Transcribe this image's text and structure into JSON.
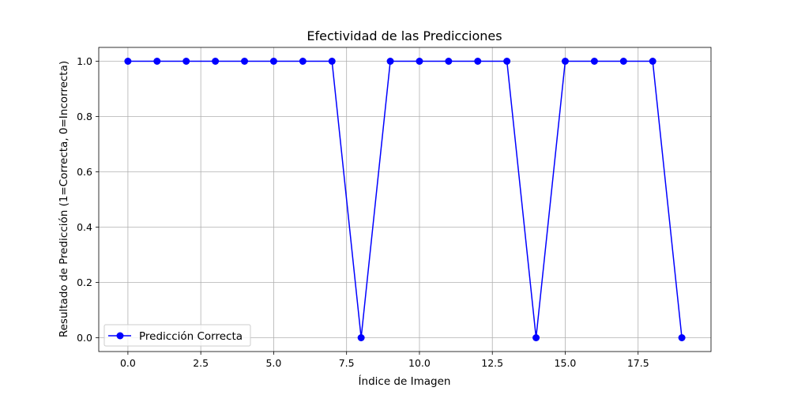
{
  "chart_data": {
    "type": "line",
    "title": "Efectividad de las Predicciones",
    "xlabel": "Índice de Imagen",
    "ylabel": "Resultado de Predicción (1=Correcta, 0=Incorrecta)",
    "xlim": [
      -1.0,
      20.0
    ],
    "ylim": [
      -0.05,
      1.05
    ],
    "x_ticks": [
      0.0,
      2.5,
      5.0,
      7.5,
      10.0,
      12.5,
      15.0,
      17.5
    ],
    "x_tick_labels": [
      "0.0",
      "2.5",
      "5.0",
      "7.5",
      "10.0",
      "12.5",
      "15.0",
      "17.5"
    ],
    "y_ticks": [
      0.0,
      0.2,
      0.4,
      0.6,
      0.8,
      1.0
    ],
    "y_tick_labels": [
      "0.0",
      "0.2",
      "0.4",
      "0.6",
      "0.8",
      "1.0"
    ],
    "grid": true,
    "legend_position": "lower-left",
    "series": [
      {
        "name": "Predicción Correcta",
        "color": "#0000ff",
        "marker": "circle",
        "x": [
          0,
          1,
          2,
          3,
          4,
          5,
          6,
          7,
          8,
          9,
          10,
          11,
          12,
          13,
          14,
          15,
          16,
          17,
          18,
          19
        ],
        "values": [
          1,
          1,
          1,
          1,
          1,
          1,
          1,
          1,
          0,
          1,
          1,
          1,
          1,
          1,
          0,
          1,
          1,
          1,
          1,
          0
        ]
      }
    ]
  }
}
